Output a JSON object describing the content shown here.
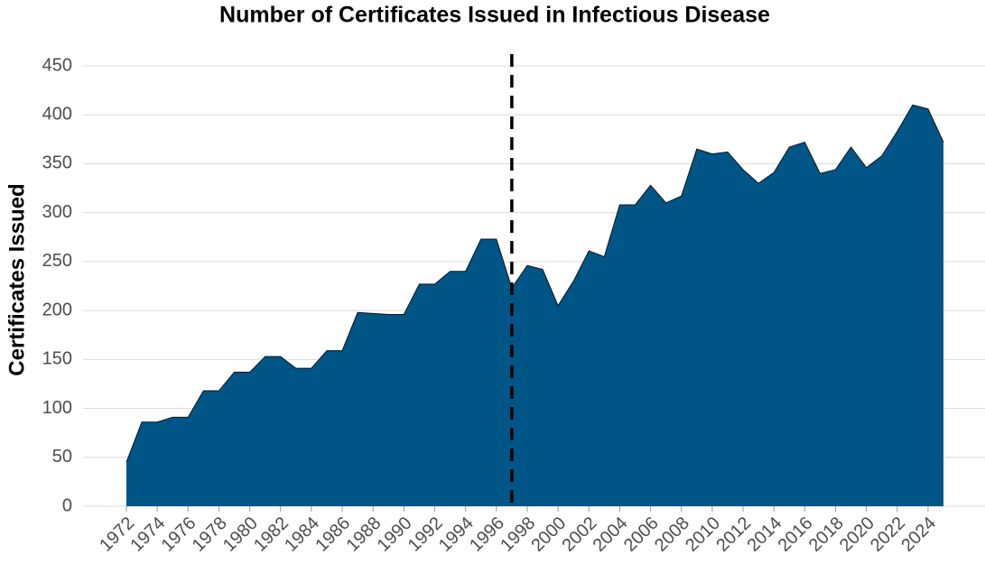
{
  "chart_data": {
    "type": "area",
    "title": "Number of Certificates Issued in Infectious Disease",
    "y_label": "Certificates Issued",
    "x": [
      1972,
      1973,
      1974,
      1975,
      1976,
      1977,
      1978,
      1979,
      1980,
      1981,
      1982,
      1983,
      1984,
      1985,
      1986,
      1987,
      1988,
      1989,
      1990,
      1991,
      1992,
      1993,
      1994,
      1995,
      1996,
      1997,
      1998,
      1999,
      2000,
      2001,
      2002,
      2003,
      2004,
      2005,
      2006,
      2007,
      2008,
      2009,
      2010,
      2011,
      2012,
      2013,
      2014,
      2015,
      2016,
      2017,
      2018,
      2019,
      2020,
      2021,
      2022,
      2023,
      2024,
      2025
    ],
    "values": [
      45,
      86,
      86,
      91,
      91,
      118,
      118,
      137,
      137,
      153,
      153,
      141,
      141,
      159,
      159,
      198,
      197,
      196,
      196,
      227,
      227,
      240,
      240,
      273,
      273,
      223,
      246,
      242,
      205,
      230,
      261,
      255,
      308,
      308,
      328,
      310,
      317,
      365,
      360,
      362,
      344,
      330,
      341,
      367,
      372,
      340,
      344,
      367,
      346,
      358,
      383,
      410,
      406,
      372
    ],
    "color": "#005587",
    "reference_line": 1997,
    "xlim": [
      1972,
      2025
    ],
    "xticks": [
      1972,
      1974,
      1976,
      1978,
      1980,
      1982,
      1984,
      1986,
      1988,
      1990,
      1992,
      1994,
      1996,
      1998,
      2000,
      2002,
      2004,
      2006,
      2008,
      2010,
      2012,
      2014,
      2016,
      2018,
      2020,
      2022,
      2024
    ],
    "ylim": [
      0,
      450
    ],
    "yticks": [
      0,
      50,
      100,
      150,
      200,
      250,
      300,
      350,
      400,
      450
    ],
    "grid": true
  }
}
